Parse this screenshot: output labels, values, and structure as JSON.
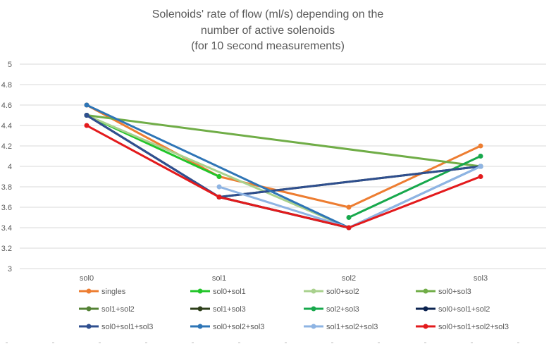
{
  "chart_data": {
    "type": "line",
    "title_lines": [
      "Solenoids' rate of flow (ml/s)  depending on the",
      "number of active solenoids",
      "(for 10 second measurements)"
    ],
    "categories": [
      "sol0",
      "sol1",
      "sol2",
      "sol3"
    ],
    "ylim": [
      3,
      5
    ],
    "yticks": [
      "3",
      "3.2",
      "3.4",
      "3.6",
      "3.8",
      "4",
      "4.2",
      "4.4",
      "4.6",
      "4.8",
      "5"
    ],
    "grid": true,
    "legend_position": "bottom",
    "series": [
      {
        "name": "singles",
        "values": [
          4.6,
          3.9,
          3.6,
          4.2
        ],
        "color": "#ED7D31"
      },
      {
        "name": "sol0+sol1",
        "values": [
          4.5,
          3.9,
          null,
          null
        ],
        "color": "#22C52A"
      },
      {
        "name": "sol0+sol2",
        "values": [
          4.5,
          null,
          3.4,
          null
        ],
        "color": "#A9D18E"
      },
      {
        "name": "sol0+sol3",
        "values": [
          4.5,
          null,
          null,
          4.0
        ],
        "color": "#70AD47"
      },
      {
        "name": "sol1+sol2",
        "values": [
          null,
          3.7,
          3.4,
          null
        ],
        "color": "#548235"
      },
      {
        "name": "sol1+sol3",
        "values": [
          null,
          3.7,
          null,
          4.0
        ],
        "color": "#2E3F1A"
      },
      {
        "name": "sol2+sol3",
        "values": [
          null,
          null,
          3.5,
          4.1
        ],
        "color": "#17A84C"
      },
      {
        "name": "sol0+sol1+sol2",
        "values": [
          4.5,
          3.7,
          3.4,
          null
        ],
        "color": "#0B2350"
      },
      {
        "name": "sol0+sol1+sol3",
        "values": [
          4.5,
          3.7,
          null,
          4.0
        ],
        "color": "#2F4F8F"
      },
      {
        "name": "sol0+sol2+sol3",
        "values": [
          4.6,
          null,
          3.4,
          4.0
        ],
        "color": "#2E75B6"
      },
      {
        "name": "sol1+sol2+sol3",
        "values": [
          null,
          3.8,
          3.4,
          4.0
        ],
        "color": "#8EB4E3"
      },
      {
        "name": "sol0+sol1+sol2+sol3",
        "values": [
          4.4,
          3.7,
          3.4,
          3.9
        ],
        "color": "#E31A1C"
      }
    ]
  }
}
